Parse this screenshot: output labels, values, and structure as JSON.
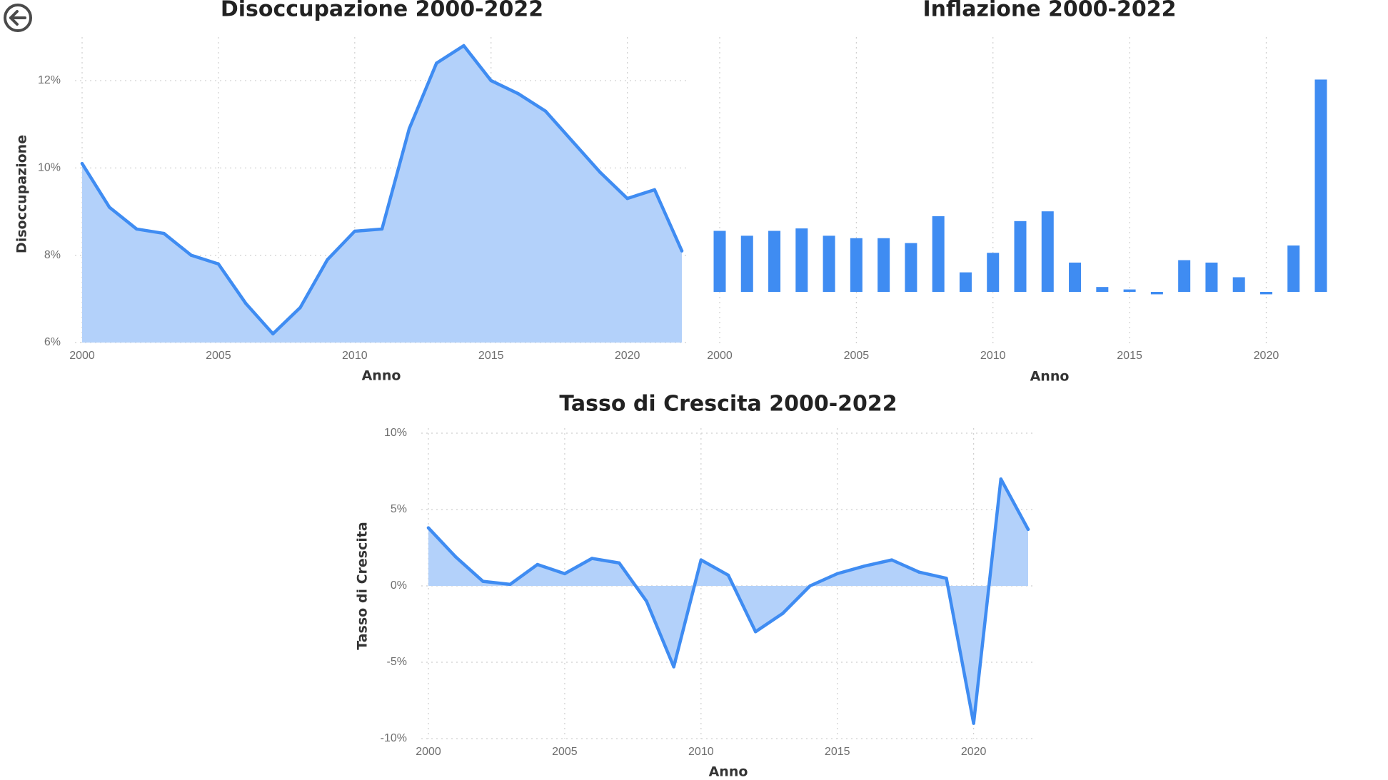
{
  "nav": {
    "back_icon": "arrow-left-circle-icon"
  },
  "colors": {
    "accent": "#3F8CF2",
    "area_fill": "#B3D1FA",
    "axis_text": "#6E6E6E",
    "title_text": "#222222",
    "grid": "#CFCFCF"
  },
  "chart_data": [
    {
      "id": "unemployment",
      "type": "area",
      "title": "Disoccupazione 2000-2022",
      "xlabel": "Anno",
      "ylabel": "Disoccupazione",
      "x": [
        2000,
        2001,
        2002,
        2003,
        2004,
        2005,
        2006,
        2007,
        2008,
        2009,
        2010,
        2011,
        2012,
        2013,
        2014,
        2015,
        2016,
        2017,
        2018,
        2019,
        2020,
        2021,
        2022
      ],
      "values": [
        10.1,
        9.1,
        8.6,
        8.5,
        8.0,
        7.8,
        6.9,
        6.2,
        6.8,
        7.9,
        8.55,
        8.6,
        10.9,
        12.4,
        12.8,
        12.0,
        11.7,
        11.3,
        10.6,
        9.9,
        9.3,
        9.5,
        8.1
      ],
      "x_ticks": [
        2000,
        2005,
        2010,
        2015,
        2020
      ],
      "y_ticks": [
        6,
        8,
        10,
        12
      ],
      "y_tick_labels": [
        "6%",
        "8%",
        "10%",
        "12%"
      ],
      "ylim": [
        6,
        12.8
      ],
      "grid": true
    },
    {
      "id": "inflation",
      "type": "bar",
      "title": "Inflazione 2000-2022",
      "xlabel": "Anno",
      "x": [
        2000,
        2001,
        2002,
        2003,
        2004,
        2005,
        2006,
        2007,
        2008,
        2009,
        2010,
        2011,
        2012,
        2013,
        2014,
        2015,
        2016,
        2017,
        2018,
        2019,
        2020,
        2021,
        2022
      ],
      "values": [
        2.5,
        2.3,
        2.5,
        2.6,
        2.3,
        2.2,
        2.2,
        2.0,
        3.1,
        0.8,
        1.6,
        2.9,
        3.3,
        1.2,
        0.2,
        0.1,
        -0.1,
        1.3,
        1.2,
        0.6,
        -0.1,
        1.9,
        8.7
      ],
      "x_ticks": [
        2000,
        2005,
        2010,
        2015,
        2020
      ],
      "grid": true
    },
    {
      "id": "growth",
      "type": "area",
      "title": "Tasso di Crescita 2000-2022",
      "xlabel": "Anno",
      "ylabel": "Tasso di Crescita",
      "x": [
        2000,
        2001,
        2002,
        2003,
        2004,
        2005,
        2006,
        2007,
        2008,
        2009,
        2010,
        2011,
        2012,
        2013,
        2014,
        2015,
        2016,
        2017,
        2018,
        2019,
        2020,
        2021,
        2022
      ],
      "values": [
        3.8,
        1.9,
        0.3,
        0.1,
        1.4,
        0.8,
        1.8,
        1.5,
        -1.0,
        -5.3,
        1.7,
        0.7,
        -3.0,
        -1.8,
        0.0,
        0.8,
        1.3,
        1.7,
        0.9,
        0.5,
        -9.0,
        7.0,
        3.7
      ],
      "x_ticks": [
        2000,
        2005,
        2010,
        2015,
        2020
      ],
      "y_ticks": [
        -10,
        -5,
        0,
        5,
        10
      ],
      "y_tick_labels": [
        "-10%",
        "-5%",
        "0%",
        "5%",
        "10%"
      ],
      "ylim": [
        -10,
        10
      ],
      "grid": true
    }
  ]
}
